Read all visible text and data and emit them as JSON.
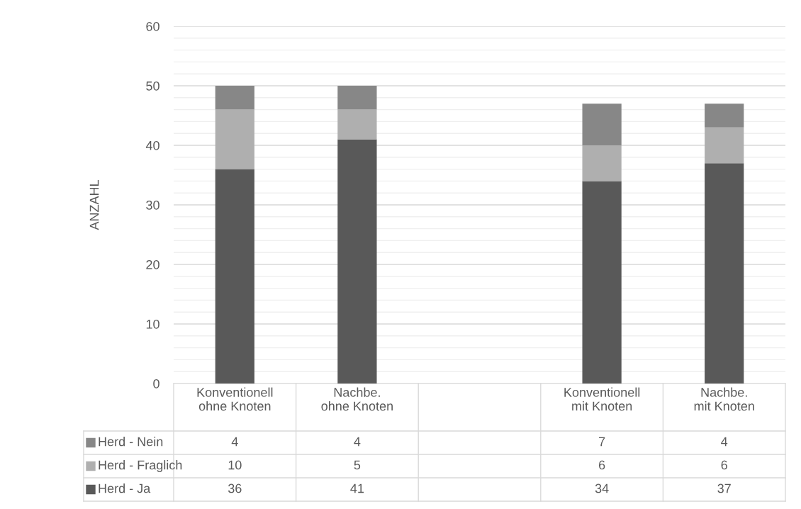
{
  "chart_data": {
    "type": "bar",
    "stacked": true,
    "ylabel": "ANZAHL",
    "categories": [
      "Konventionell\nohne Knoten",
      "Nachbe.\nohne Knoten",
      null,
      "Konventionell\nmit Knoten",
      "Nachbe.\nmit Knoten"
    ],
    "series": [
      {
        "name": "Herd - Ja",
        "color": "#595959",
        "values": [
          36,
          41,
          null,
          34,
          37
        ]
      },
      {
        "name": "Herd - Fraglich",
        "color": "#afafaf",
        "values": [
          10,
          5,
          null,
          6,
          6
        ]
      },
      {
        "name": "Herd - Nein",
        "color": "#878787",
        "values": [
          4,
          4,
          null,
          7,
          4
        ]
      }
    ],
    "ylim": [
      0,
      60
    ],
    "yticks": [
      0,
      {
        "value": 2,
        "label": null
      },
      {
        "value": 4,
        "label": null
      },
      {
        "value": 6,
        "label": null
      },
      {
        "value": 8,
        "label": null
      },
      10,
      {
        "value": 12,
        "label": null
      },
      {
        "value": 14,
        "label": null
      },
      {
        "value": 16,
        "label": null
      },
      {
        "value": 18,
        "label": null
      },
      20,
      {
        "value": 22,
        "label": null
      },
      {
        "value": 24,
        "label": null
      },
      {
        "value": 26,
        "label": null
      },
      {
        "value": 28,
        "label": null
      },
      30,
      {
        "value": 32,
        "label": null
      },
      {
        "value": 34,
        "label": null
      },
      {
        "value": 36,
        "label": null
      },
      {
        "value": 38,
        "label": null
      },
      40,
      {
        "value": 42,
        "label": null
      },
      {
        "value": 44,
        "label": null
      },
      {
        "value": 46,
        "label": null
      },
      {
        "value": 48,
        "label": null
      },
      50,
      {
        "value": 52,
        "label": null
      },
      {
        "value": 54,
        "label": null
      },
      {
        "value": 56,
        "label": null
      },
      {
        "value": 58,
        "label": null
      },
      60
    ],
    "grid": "y",
    "data_labels": true,
    "legend": "bottom"
  }
}
